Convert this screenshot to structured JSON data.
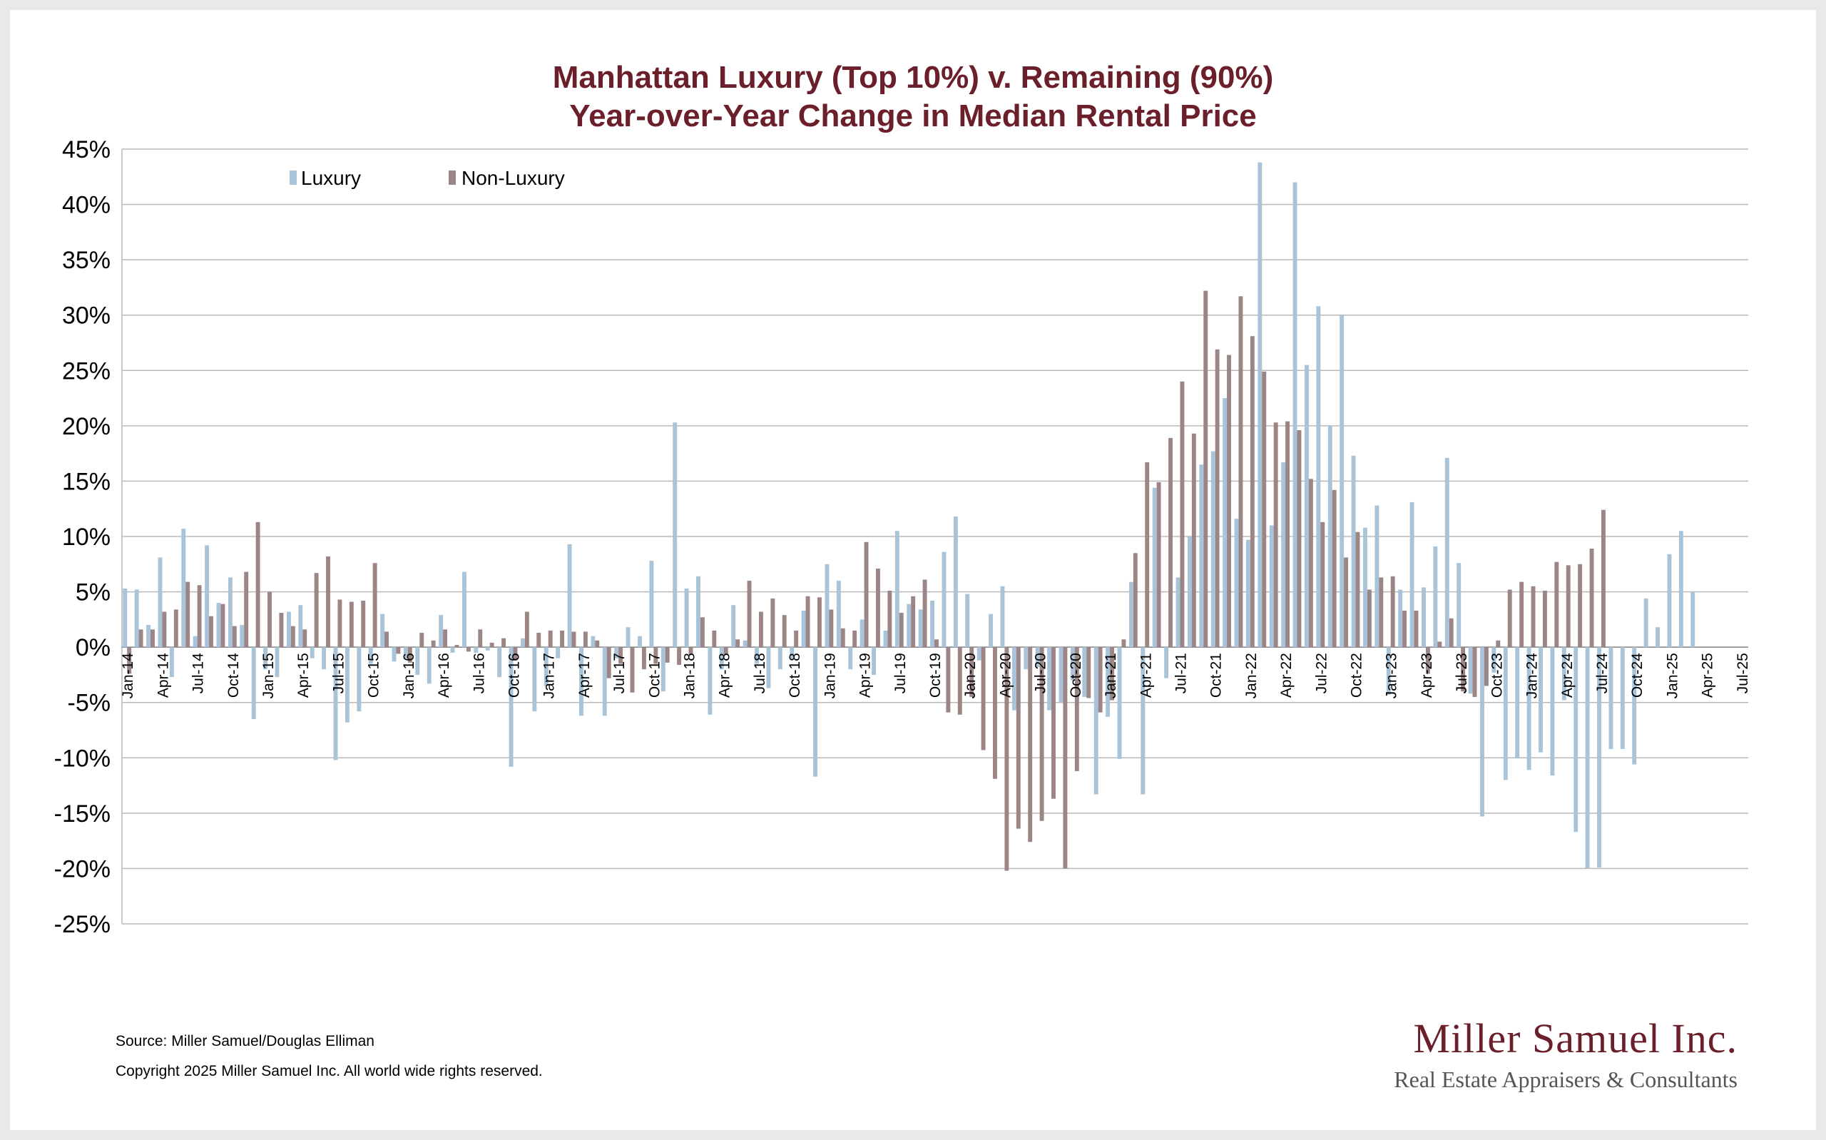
{
  "chart_data": {
    "type": "bar",
    "title": "Manhattan Luxury (Top 10%) v. Remaining (90%)",
    "subtitle": "Year-over-Year Change in Median Rental Price",
    "ylim": [
      -25,
      45
    ],
    "yticks": [
      "45%",
      "40%",
      "35%",
      "30%",
      "25%",
      "20%",
      "15%",
      "10%",
      "5%",
      "0%",
      "-5%",
      "-10%",
      "-15%",
      "-20%",
      "-25%"
    ],
    "x_tick_labels": [
      "Jan-14",
      "Apr-14",
      "Jul-14",
      "Oct-14",
      "Jan-15",
      "Apr-15",
      "Jul-15",
      "Oct-15",
      "Jan-16",
      "Apr-16",
      "Jul-16",
      "Oct-16",
      "Jan-17",
      "Apr-17",
      "Jul-17",
      "Oct-17",
      "Jan-18",
      "Apr-18",
      "Jul-18",
      "Oct-18",
      "Jan-19",
      "Apr-19",
      "Jul-19",
      "Oct-19",
      "Jan-20",
      "Apr-20",
      "Jul-20",
      "Oct-20",
      "Jan-21",
      "Apr-21",
      "Jul-21",
      "Oct-21",
      "Jan-22",
      "Apr-22",
      "Jul-22",
      "Oct-22",
      "Jan-23",
      "Apr-23",
      "Jul-23",
      "Oct-23",
      "Jan-24",
      "Apr-24",
      "Jul-24",
      "Oct-24",
      "Jan-25",
      "Apr-25",
      "Jul-25"
    ],
    "grid": true,
    "legend_position": "top-left",
    "series": [
      {
        "name": "Luxury",
        "color": "#a9c4d8",
        "values": [
          5.3,
          5.2,
          2.0,
          8.1,
          -2.7,
          10.7,
          1.0,
          9.2,
          4.0,
          6.3,
          2.0,
          -6.5,
          -2.0,
          -2.7,
          3.2,
          3.8,
          -1.0,
          -2.0,
          -10.2,
          -6.8,
          -5.8,
          -1.5,
          3.0,
          -1.3,
          -1.0,
          -2.5,
          -3.3,
          2.9,
          -0.5,
          6.8,
          -0.5,
          -0.3,
          -2.7,
          -10.8,
          0.8,
          -5.8,
          -3.5,
          -1.0,
          9.3,
          -6.2,
          1.0,
          -6.2,
          -1.0,
          1.8,
          1.0,
          7.8,
          -4.0,
          20.3,
          5.3,
          6.4,
          -6.1,
          -2.0,
          3.8,
          0.6,
          -1.5,
          -3.7,
          -2.0,
          -1.0,
          3.3,
          -11.7,
          7.5,
          6.0,
          -2.0,
          2.5,
          -2.5,
          1.5,
          10.5,
          3.9,
          3.4,
          4.2,
          8.6,
          11.8,
          4.8,
          -1.2,
          3.0,
          5.5,
          -5.7,
          -2.0,
          -1.8,
          -5.7,
          -5.0,
          -3.0,
          -4.5,
          -13.3,
          -6.3,
          -10.1,
          5.9,
          -13.3,
          14.4,
          -2.8,
          6.3,
          10.0,
          16.5,
          17.7,
          22.5,
          11.6,
          9.7,
          43.8,
          11.0,
          16.7,
          42.0,
          25.5,
          30.8,
          20.0,
          30.0,
          17.3,
          10.8,
          12.8,
          -4.3,
          5.2,
          13.1,
          5.4,
          9.1,
          17.1,
          7.6,
          -4.2,
          -15.3,
          -2.3,
          -12.0,
          -10.0,
          -11.1,
          -9.5,
          -11.6,
          -4.8,
          -16.7,
          -20.0,
          -19.9,
          -9.2,
          -9.2,
          -10.6,
          4.4,
          1.8,
          8.4,
          10.5,
          5.0
        ],
        "bar_alignment": "Luxury values aligned from Jan-14 (index 0) onward"
      },
      {
        "name": "Non-Luxury",
        "color": "#9b8585",
        "values": [
          -2.4,
          1.6,
          1.6,
          3.2,
          3.4,
          5.9,
          5.6,
          2.8,
          3.9,
          1.9,
          6.8,
          11.3,
          5.0,
          3.1,
          1.9,
          1.6,
          6.7,
          8.2,
          4.3,
          4.1,
          4.2,
          7.6,
          1.4,
          -0.6,
          -1.4,
          1.3,
          0.6,
          1.6,
          0.2,
          -0.4,
          1.6,
          0.4,
          0.8,
          -1.2,
          3.2,
          1.3,
          1.5,
          1.5,
          1.4,
          1.4,
          0.6,
          -2.8,
          -1.5,
          -4.1,
          -2.0,
          -1.5,
          -1.4,
          -1.6,
          -0.7,
          2.7,
          1.5,
          -0.7,
          0.7,
          6.0,
          3.2,
          4.4,
          2.9,
          1.5,
          4.6,
          4.5,
          3.4,
          1.7,
          1.5,
          9.5,
          7.1,
          5.1,
          3.1,
          4.6,
          6.1,
          0.7,
          -5.9,
          -6.1,
          -4.5,
          -9.3,
          -11.9,
          -20.2,
          -16.4,
          -17.6,
          -15.7,
          -13.7,
          -20.0,
          -11.2,
          -4.6,
          -5.9,
          -4.8,
          0.7,
          8.5,
          16.7,
          14.9,
          18.9,
          24.0,
          19.3,
          32.2,
          26.9,
          26.4,
          31.7,
          28.1,
          24.9,
          20.3,
          20.4,
          19.6,
          15.2,
          11.3,
          14.2,
          8.1,
          10.4,
          5.2,
          6.3,
          6.4,
          3.3,
          3.3,
          -2.4,
          0.5,
          2.6,
          -4.0,
          -4.5,
          -3.5,
          0.6,
          5.2,
          5.9,
          5.5,
          5.1,
          7.7,
          7.4,
          7.5,
          8.9,
          12.4
        ]
      }
    ]
  },
  "footer": {
    "source": "Source: Miller Samuel/Douglas Elliman",
    "copyright": "Copyright 2025 Miller Samuel Inc.  All world wide rights reserved."
  },
  "logo": {
    "name": "Miller Samuel Inc.",
    "tagline": "Real Estate Appraisers & Consultants"
  }
}
